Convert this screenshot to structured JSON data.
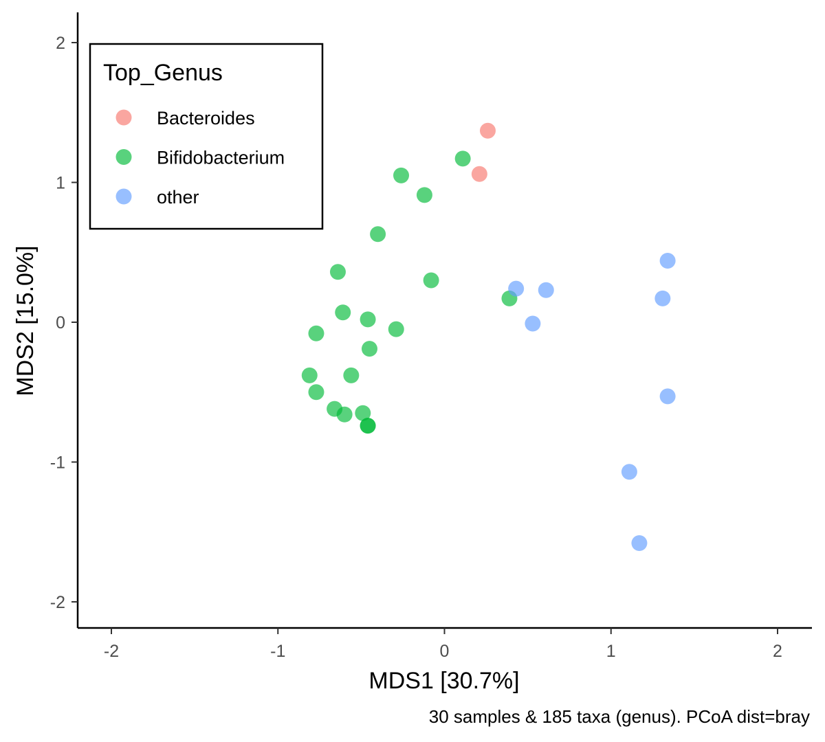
{
  "chart_data": {
    "type": "scatter",
    "title": "",
    "xlabel": "MDS1 [30.7%]",
    "ylabel": "MDS2 [15.0%]",
    "caption": "30 samples & 185 taxa (genus). PCoA dist=bray",
    "xlim": [
      -2.2,
      2.2
    ],
    "ylim": [
      -2.2,
      2.2
    ],
    "xticks": [
      -2,
      -1,
      0,
      1,
      2
    ],
    "yticks": [
      -2,
      -1,
      0,
      1,
      2
    ],
    "xtick_labels": [
      "-2",
      "-1",
      "0",
      "1",
      "2"
    ],
    "ytick_labels": [
      "-2",
      "-1",
      "0",
      "1",
      "2"
    ],
    "grid": false,
    "legend": {
      "title": "Top_Genus",
      "position": "top-left",
      "entries": [
        "Bacteroides",
        "Bifidobacterium",
        "other"
      ]
    },
    "series": [
      {
        "name": "Bacteroides",
        "color": "#F8766D",
        "points": [
          [
            0.26,
            1.37
          ],
          [
            0.21,
            1.06
          ]
        ]
      },
      {
        "name": "Bifidobacterium",
        "color": "#00BA38",
        "points": [
          [
            0.11,
            1.17
          ],
          [
            -0.26,
            1.05
          ],
          [
            -0.12,
            0.91
          ],
          [
            -0.4,
            0.63
          ],
          [
            -0.64,
            0.36
          ],
          [
            -0.08,
            0.3
          ],
          [
            0.39,
            0.17
          ],
          [
            -0.61,
            0.07
          ],
          [
            -0.46,
            0.02
          ],
          [
            -0.29,
            -0.05
          ],
          [
            -0.77,
            -0.08
          ],
          [
            -0.45,
            -0.19
          ],
          [
            -0.56,
            -0.38
          ],
          [
            -0.81,
            -0.38
          ],
          [
            -0.77,
            -0.5
          ],
          [
            -0.66,
            -0.62
          ],
          [
            -0.6,
            -0.66
          ],
          [
            -0.49,
            -0.65
          ],
          [
            -0.46,
            -0.74
          ],
          [
            -0.46,
            -0.74
          ]
        ]
      },
      {
        "name": "other",
        "color": "#619CFF",
        "points": [
          [
            1.34,
            0.44
          ],
          [
            0.43,
            0.24
          ],
          [
            0.61,
            0.23
          ],
          [
            1.31,
            0.17
          ],
          [
            0.53,
            -0.01
          ],
          [
            1.34,
            -0.53
          ],
          [
            1.11,
            -1.07
          ],
          [
            1.17,
            -1.58
          ]
        ]
      }
    ]
  }
}
